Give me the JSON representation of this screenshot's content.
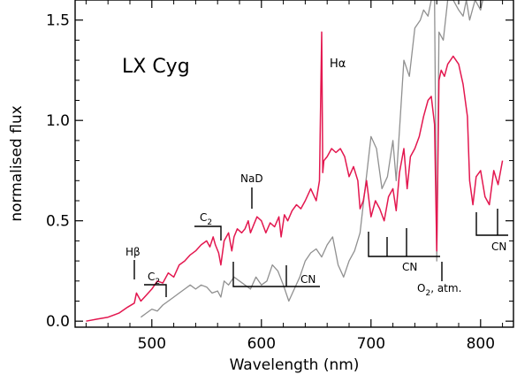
{
  "chart_data": {
    "type": "line",
    "title": "LX Cyg",
    "xlabel": "Wavelength (nm)",
    "ylabel": "normalised flux",
    "xlim": [
      430,
      830
    ],
    "ylim": [
      -0.03,
      1.6
    ],
    "xticks": [
      500,
      600,
      700,
      800
    ],
    "yticks": [
      0.0,
      0.5,
      1.0,
      1.5
    ],
    "xtick_labels": [
      "500",
      "600",
      "700",
      "800"
    ],
    "ytick_labels": [
      "0.0",
      "0.5",
      "1.0",
      "1.5"
    ],
    "grid": false,
    "series": [
      {
        "color": "#e3174f",
        "x": [
          440,
          450,
          460,
          470,
          478,
          484,
          486,
          490,
          495,
          500,
          505,
          510,
          515,
          520,
          525,
          530,
          535,
          540,
          545,
          550,
          553,
          556,
          558,
          561,
          563,
          566,
          570,
          573,
          575,
          578,
          582,
          585,
          588,
          590,
          593,
          596,
          600,
          604,
          608,
          612,
          616,
          618,
          621,
          624,
          628,
          632,
          636,
          640,
          645,
          650,
          653,
          655,
          656,
          657,
          660,
          664,
          668,
          672,
          676,
          680,
          684,
          688,
          690,
          693,
          696,
          700,
          704,
          708,
          712,
          716,
          720,
          723,
          726,
          730,
          733,
          736,
          740,
          744,
          748,
          752,
          755,
          758,
          760,
          762,
          764,
          767,
          770,
          775,
          780,
          784,
          788,
          790,
          793,
          796,
          800,
          804,
          808,
          812,
          816,
          820
        ],
        "y": [
          0.0,
          0.01,
          0.02,
          0.04,
          0.07,
          0.09,
          0.14,
          0.1,
          0.13,
          0.16,
          0.2,
          0.19,
          0.24,
          0.22,
          0.28,
          0.3,
          0.33,
          0.35,
          0.38,
          0.4,
          0.37,
          0.42,
          0.38,
          0.34,
          0.28,
          0.4,
          0.44,
          0.35,
          0.42,
          0.46,
          0.44,
          0.46,
          0.5,
          0.44,
          0.48,
          0.52,
          0.5,
          0.44,
          0.49,
          0.47,
          0.52,
          0.42,
          0.53,
          0.5,
          0.55,
          0.58,
          0.56,
          0.6,
          0.66,
          0.6,
          0.7,
          1.44,
          0.74,
          0.8,
          0.82,
          0.86,
          0.84,
          0.86,
          0.82,
          0.72,
          0.77,
          0.7,
          0.56,
          0.6,
          0.7,
          0.52,
          0.6,
          0.56,
          0.5,
          0.62,
          0.66,
          0.55,
          0.74,
          0.86,
          0.66,
          0.82,
          0.86,
          0.92,
          1.02,
          1.1,
          1.12,
          0.98,
          0.35,
          1.2,
          1.25,
          1.22,
          1.28,
          1.32,
          1.28,
          1.18,
          1.02,
          0.7,
          0.58,
          0.72,
          0.75,
          0.62,
          0.58,
          0.75,
          0.68,
          0.8
        ]
      },
      {
        "color": "#909090",
        "x": [
          490,
          495,
          500,
          505,
          510,
          515,
          520,
          525,
          530,
          535,
          540,
          545,
          550,
          555,
          560,
          563,
          566,
          570,
          575,
          580,
          585,
          590,
          595,
          600,
          605,
          610,
          615,
          620,
          625,
          630,
          635,
          640,
          645,
          650,
          655,
          660,
          665,
          670,
          675,
          680,
          685,
          690,
          695,
          700,
          705,
          710,
          715,
          720,
          723,
          726,
          730,
          735,
          740,
          745,
          748,
          752,
          755,
          758,
          760,
          762,
          766,
          770,
          775,
          780,
          784,
          787,
          790,
          795,
          800,
          802
        ],
        "y": [
          0.02,
          0.04,
          0.06,
          0.05,
          0.08,
          0.1,
          0.12,
          0.14,
          0.16,
          0.18,
          0.16,
          0.18,
          0.17,
          0.14,
          0.15,
          0.12,
          0.2,
          0.18,
          0.22,
          0.2,
          0.18,
          0.16,
          0.22,
          0.18,
          0.2,
          0.28,
          0.25,
          0.18,
          0.1,
          0.16,
          0.22,
          0.3,
          0.34,
          0.36,
          0.32,
          0.38,
          0.42,
          0.28,
          0.22,
          0.3,
          0.35,
          0.44,
          0.68,
          0.92,
          0.86,
          0.66,
          0.72,
          0.9,
          0.7,
          0.95,
          1.3,
          1.22,
          1.46,
          1.5,
          1.55,
          1.52,
          1.6,
          1.6,
          0.3,
          1.44,
          1.4,
          1.6,
          1.6,
          1.55,
          1.52,
          1.6,
          1.5,
          1.6,
          1.55,
          1.6
        ]
      }
    ],
    "annotations": [
      {
        "text": "Hα",
        "x": 656
      },
      {
        "text": "NaD",
        "x": 589
      },
      {
        "text": "C",
        "sub": "2",
        "x": 563
      },
      {
        "text": "C",
        "sub": "2",
        "x": 516
      },
      {
        "text": "Hβ",
        "x": 486
      },
      {
        "text": "CN",
        "x": 620
      },
      {
        "text": "CN",
        "x": 730
      },
      {
        "text": "CN",
        "x": 805
      },
      {
        "text": "O",
        "sub": "2",
        "suffix": ", atm.",
        "x": 760
      }
    ]
  }
}
